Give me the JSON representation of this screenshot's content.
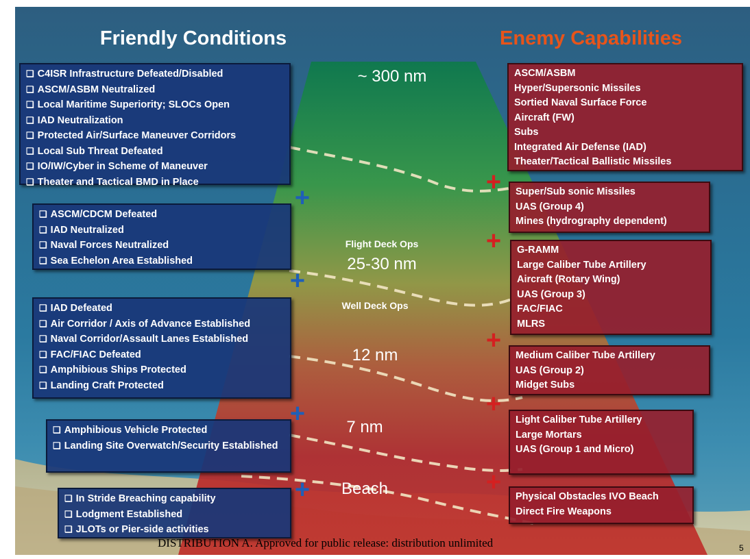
{
  "titles": {
    "friendly": "Friendly Conditions",
    "enemy": "Enemy Capabilities"
  },
  "ranges": {
    "r300": "~ 300 nm",
    "flight_deck": "Flight Deck Ops",
    "r25": "25-30 nm",
    "well_deck": "Well Deck Ops",
    "r12": "12 nm",
    "r7": "7 nm",
    "beach": "Beach"
  },
  "friendly": [
    [
      "C4ISR Infrastructure Defeated/Disabled",
      "ASCM/ASBM Neutralized",
      "Local Maritime Superiority; SLOCs Open",
      "IAD Neutralization",
      "Protected Air/Surface Maneuver Corridors",
      "Local Sub Threat Defeated",
      "IO/IW/Cyber in Scheme of Maneuver",
      "Theater and Tactical BMD in Place"
    ],
    [
      "ASCM/CDCM Defeated",
      "IAD Neutralized",
      "Naval Forces Neutralized",
      "Sea Echelon Area Established"
    ],
    [
      "IAD Defeated",
      "Air Corridor / Axis of Advance Established",
      "Naval Corridor/Assault Lanes Established",
      "FAC/FIAC Defeated",
      "Amphibious Ships Protected",
      "Landing Craft Protected"
    ],
    [
      "Amphibious Vehicle Protected",
      "Landing Site Overwatch/Security Established"
    ],
    [
      "In Stride Breaching capability",
      "Lodgment Established",
      "JLOTs or Pier-side activities"
    ]
  ],
  "enemy": [
    [
      "ASCM/ASBM",
      "Hyper/Supersonic Missiles",
      "Sortied Naval Surface Force",
      "Aircraft (FW)",
      "Subs",
      "Integrated Air Defense (IAD)",
      "Theater/Tactical Ballistic Missiles"
    ],
    [
      "Super/Sub sonic Missiles",
      "UAS (Group 4)",
      "Mines (hydrography dependent)"
    ],
    [
      "G-RAMM",
      "Large Caliber Tube Artillery",
      "Aircraft (Rotary Wing)",
      "UAS (Group 3)",
      "FAC/FIAC",
      "MLRS"
    ],
    [
      "Medium Caliber Tube Artillery",
      "UAS (Group 2)",
      "Midget Subs"
    ],
    [
      "Light Caliber Tube Artillery",
      "Large Mortars",
      "UAS (Group 1 and Micro)"
    ],
    [
      "Physical Obstacles IVO Beach",
      "Direct Fire Weapons"
    ]
  ],
  "plus_symbol": "+",
  "colors": {
    "friendly_box": "#19377a",
    "enemy_box": "#961e2d",
    "enemy_title": "#e8541a",
    "plus_blue": "#1f5fb8",
    "plus_red": "#d42020"
  },
  "footer": {
    "distribution": "DISTRIBUTION A. Approved for public release: distribution unlimited",
    "page": "5"
  }
}
